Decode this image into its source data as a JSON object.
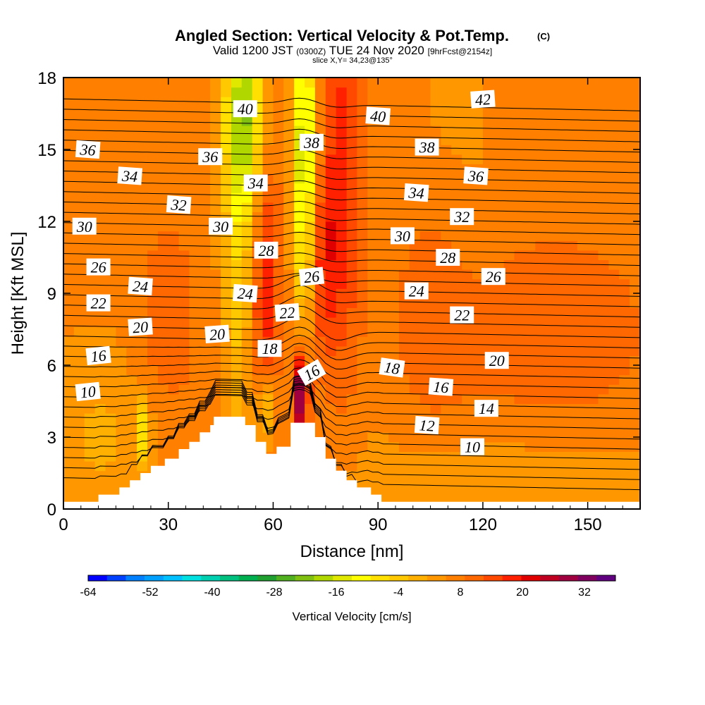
{
  "chart_data": {
    "type": "heatmap",
    "title": "Angled Section: Vertical Velocity & Pot.Temp.",
    "title_units": "(C)",
    "subtitle_main": "Valid 1200 JST",
    "subtitle_zulu": "(0300Z)",
    "subtitle_date": "TUE 24 Nov 2020",
    "subtitle_fcst": "[9hrFcst@2154z]",
    "slice_text": "slice X,Y= 34,23@135°",
    "xlabel": "Distance [nm]",
    "ylabel": "Height [Kft MSL]",
    "xlim": [
      0,
      165
    ],
    "ylim": [
      0,
      18
    ],
    "x_ticks": [
      "0",
      "30",
      "60",
      "90",
      "120",
      "150"
    ],
    "x_tick_values": [
      0,
      30,
      60,
      90,
      120,
      150
    ],
    "y_ticks": [
      "0",
      "3",
      "6",
      "9",
      "12",
      "15",
      "18"
    ],
    "y_tick_values": [
      0,
      3,
      6,
      9,
      12,
      15,
      18
    ],
    "colorbar": {
      "label": "Vertical Velocity [cm/s]",
      "tick_labels": [
        "-64",
        "-52",
        "-40",
        "-28",
        "-16",
        "-4",
        "8",
        "20",
        "32"
      ],
      "tick_values": [
        -64,
        -52,
        -40,
        -28,
        -16,
        -4,
        8,
        20,
        32
      ],
      "min": -64,
      "max": 38,
      "colors": [
        "#0000ff",
        "#0040ff",
        "#0080ff",
        "#00a0ff",
        "#00c0ff",
        "#00e0e0",
        "#00d0b0",
        "#00c080",
        "#00b050",
        "#20a030",
        "#50b020",
        "#80c010",
        "#b0d800",
        "#e0e800",
        "#ffff00",
        "#ffe000",
        "#ffc800",
        "#ffb000",
        "#ff9800",
        "#ff8000",
        "#ff6800",
        "#ff4800",
        "#ff2000",
        "#e00000",
        "#c00020",
        "#a00040",
        "#800060",
        "#600080"
      ]
    },
    "terrain": [
      [
        0,
        0.3
      ],
      [
        10,
        0.3
      ],
      [
        10,
        0.6
      ],
      [
        16,
        0.6
      ],
      [
        16,
        0.9
      ],
      [
        19,
        0.9
      ],
      [
        19,
        1.2
      ],
      [
        22,
        1.2
      ],
      [
        22,
        1.5
      ],
      [
        25,
        1.5
      ],
      [
        25,
        1.8
      ],
      [
        29,
        1.8
      ],
      [
        29,
        2.1
      ],
      [
        33,
        2.1
      ],
      [
        33,
        2.5
      ],
      [
        36,
        2.5
      ],
      [
        36,
        2.8
      ],
      [
        39,
        2.8
      ],
      [
        39,
        3.2
      ],
      [
        42,
        3.2
      ],
      [
        42,
        3.5
      ],
      [
        43,
        3.5
      ],
      [
        43,
        3.85
      ],
      [
        52,
        3.85
      ],
      [
        52,
        3.5
      ],
      [
        55,
        3.5
      ],
      [
        55,
        2.8
      ],
      [
        58,
        2.8
      ],
      [
        58,
        2.3
      ],
      [
        61,
        2.3
      ],
      [
        61,
        2.6
      ],
      [
        65,
        2.6
      ],
      [
        65,
        3.6
      ],
      [
        72,
        3.6
      ],
      [
        72,
        3.0
      ],
      [
        75,
        3.0
      ],
      [
        75,
        2.1
      ],
      [
        78,
        2.1
      ],
      [
        78,
        1.6
      ],
      [
        81,
        1.6
      ],
      [
        81,
        1.2
      ],
      [
        84,
        1.2
      ],
      [
        84,
        0.9
      ],
      [
        88,
        0.9
      ],
      [
        88,
        0.6
      ],
      [
        91,
        0.6
      ],
      [
        91,
        0.3
      ],
      [
        165,
        0.3
      ]
    ],
    "theta_contour_levels": [
      6,
      7,
      8,
      9,
      10,
      11,
      12,
      13,
      14,
      15,
      16,
      17,
      18,
      19,
      20,
      21,
      22,
      23,
      24,
      25,
      26,
      27,
      28,
      29,
      30,
      31,
      32,
      33,
      34,
      35,
      36,
      37,
      38,
      39,
      40,
      41,
      42,
      43
    ],
    "theta_contour_labels": [
      {
        "text": "36",
        "x": 7,
        "y": 15.0,
        "angle": 4
      },
      {
        "text": "34",
        "x": 19,
        "y": 13.9,
        "angle": 4
      },
      {
        "text": "32",
        "x": 33,
        "y": 12.7,
        "angle": 4
      },
      {
        "text": "30",
        "x": 6,
        "y": 11.8,
        "angle": 0
      },
      {
        "text": "26",
        "x": 10,
        "y": 10.1,
        "angle": 0
      },
      {
        "text": "24",
        "x": 22,
        "y": 9.3,
        "angle": 4
      },
      {
        "text": "22",
        "x": 10,
        "y": 8.6,
        "angle": 0
      },
      {
        "text": "20",
        "x": 22,
        "y": 7.6,
        "angle": -4
      },
      {
        "text": "16",
        "x": 10,
        "y": 6.4,
        "angle": -6
      },
      {
        "text": "10",
        "x": 7,
        "y": 4.9,
        "angle": -6
      },
      {
        "text": "40",
        "x": 52,
        "y": 16.7,
        "angle": 0
      },
      {
        "text": "36",
        "x": 42,
        "y": 14.7,
        "angle": 0
      },
      {
        "text": "34",
        "x": 55,
        "y": 13.6,
        "angle": 0
      },
      {
        "text": "30",
        "x": 45,
        "y": 11.8,
        "angle": 0
      },
      {
        "text": "28",
        "x": 58,
        "y": 10.8,
        "angle": 0
      },
      {
        "text": "24",
        "x": 52,
        "y": 9.0,
        "angle": 4
      },
      {
        "text": "20",
        "x": 44,
        "y": 7.3,
        "angle": -4
      },
      {
        "text": "18",
        "x": 59,
        "y": 6.7,
        "angle": 0
      },
      {
        "text": "38",
        "x": 71,
        "y": 15.3,
        "angle": 0
      },
      {
        "text": "26",
        "x": 71,
        "y": 9.7,
        "angle": -6
      },
      {
        "text": "22",
        "x": 64,
        "y": 8.2,
        "angle": -4
      },
      {
        "text": "16",
        "x": 71,
        "y": 5.7,
        "angle": -30
      },
      {
        "text": "40",
        "x": 90,
        "y": 16.4,
        "angle": 4
      },
      {
        "text": "42",
        "x": 120,
        "y": 17.1,
        "angle": -4
      },
      {
        "text": "38",
        "x": 104,
        "y": 15.1,
        "angle": 0
      },
      {
        "text": "36",
        "x": 118,
        "y": 13.9,
        "angle": 4
      },
      {
        "text": "34",
        "x": 101,
        "y": 13.2,
        "angle": 4
      },
      {
        "text": "32",
        "x": 114,
        "y": 12.2,
        "angle": 0
      },
      {
        "text": "30",
        "x": 97,
        "y": 11.4,
        "angle": 0
      },
      {
        "text": "28",
        "x": 110,
        "y": 10.5,
        "angle": 0
      },
      {
        "text": "26",
        "x": 123,
        "y": 9.7,
        "angle": 0
      },
      {
        "text": "24",
        "x": 101,
        "y": 9.1,
        "angle": 0
      },
      {
        "text": "22",
        "x": 114,
        "y": 8.1,
        "angle": 0
      },
      {
        "text": "20",
        "x": 124,
        "y": 6.2,
        "angle": 0
      },
      {
        "text": "18",
        "x": 94,
        "y": 5.9,
        "angle": 8
      },
      {
        "text": "16",
        "x": 108,
        "y": 5.1,
        "angle": 4
      },
      {
        "text": "14",
        "x": 121,
        "y": 4.2,
        "angle": 0
      },
      {
        "text": "12",
        "x": 104,
        "y": 3.5,
        "angle": 4
      },
      {
        "text": "10",
        "x": 117,
        "y": 2.6,
        "angle": 0
      }
    ],
    "velocity_features": [
      {
        "x": 52,
        "y": 16.5,
        "sx": 4,
        "sy": 3,
        "w": -22
      },
      {
        "x": 50,
        "y": 11.0,
        "sx": 3,
        "sy": 7,
        "w": -10
      },
      {
        "x": 69,
        "y": 15.5,
        "sx": 2.5,
        "sy": 4,
        "w": -20
      },
      {
        "x": 69,
        "y": 11.0,
        "sx": 2,
        "sy": 4,
        "w": -8
      },
      {
        "x": 80,
        "y": 14.0,
        "sx": 4,
        "sy": 6,
        "w": 12
      },
      {
        "x": 74,
        "y": 10.5,
        "sx": 3,
        "sy": 3,
        "w": 10
      },
      {
        "x": 58,
        "y": 9.5,
        "sx": 3,
        "sy": 4,
        "w": 13
      },
      {
        "x": 68,
        "y": 4.8,
        "sx": 1.6,
        "sy": 1.3,
        "w": 28
      },
      {
        "x": 23,
        "y": 3.2,
        "sx": 1.3,
        "sy": 1.0,
        "w": -14
      },
      {
        "x": 58,
        "y": 4.2,
        "sx": 2,
        "sy": 1.0,
        "w": -12
      },
      {
        "x": 30,
        "y": 8.0,
        "sx": 6,
        "sy": 3,
        "w": 6
      },
      {
        "x": 140,
        "y": 7.5,
        "sx": 20,
        "sy": 3,
        "w": 6
      },
      {
        "x": 105,
        "y": 8.5,
        "sx": 8,
        "sy": 4,
        "w": 5
      },
      {
        "x": 120,
        "y": 1.5,
        "sx": 40,
        "sy": 1.5,
        "w": -3
      },
      {
        "x": 10,
        "y": 3.0,
        "sx": 10,
        "sy": 2.5,
        "w": -5
      },
      {
        "x": 110,
        "y": 14.0,
        "sx": 10,
        "sy": 4,
        "w": -2
      }
    ]
  }
}
